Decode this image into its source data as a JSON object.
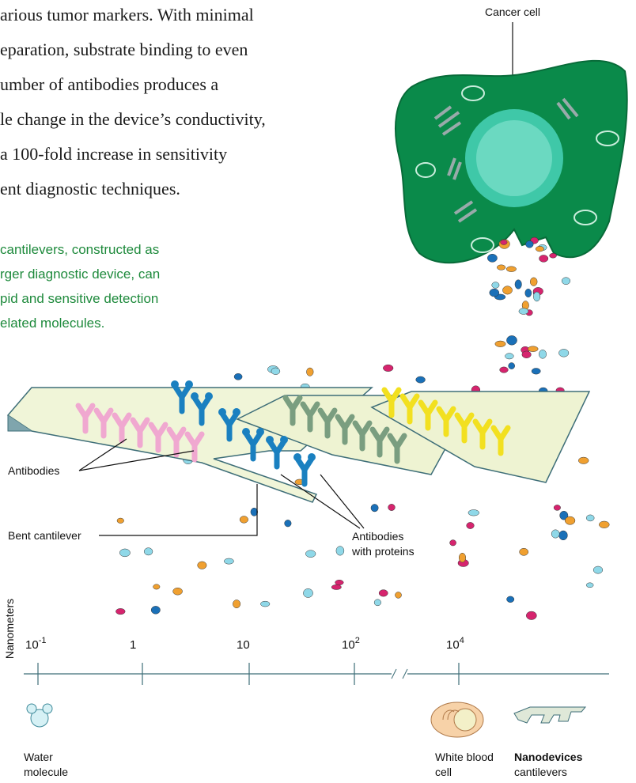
{
  "paragraph": [
    "arious tumor markers. With minimal",
    "eparation, substrate binding to even",
    "umber of antibodies produces a",
    "le change in the device’s conductivity,",
    "a 100-fold increase in sensitivity",
    "ent diagnostic techniques."
  ],
  "caption": [
    "cantilevers, constructed as",
    "rger diagnostic device, can",
    "pid and sensitive detection",
    "elated molecules."
  ],
  "labels": {
    "cancer_cell": "Cancer cell",
    "antibodies": "Antibodies",
    "bent_cantilever": "Bent cantilever",
    "antibodies_with_proteins": [
      "Antibodies",
      "with proteins"
    ]
  },
  "scale": {
    "axis_label": "Nanometers",
    "ticks": [
      {
        "base": "10",
        "exp": "-1"
      },
      {
        "base": "1"
      },
      {
        "base": "10"
      },
      {
        "base": "10",
        "exp": "2"
      },
      {
        "base": "10",
        "exp": "4"
      }
    ]
  },
  "specimens": {
    "water": [
      "Water",
      "molecule"
    ],
    "white_blood_cell": [
      "White blood",
      "cell"
    ],
    "nanodevices": [
      "Nanodevices",
      "cantilevers"
    ]
  }
}
